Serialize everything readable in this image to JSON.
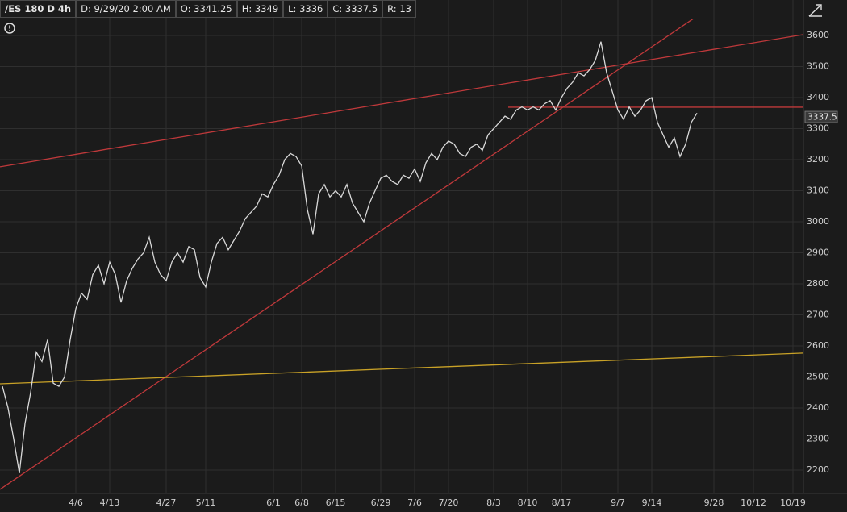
{
  "chart_data": {
    "type": "line",
    "header": [
      "/ES 180 D 4h",
      "D: 9/29/20 2:00 AM",
      "O: 3341.25",
      "H: 3349",
      "L: 3336",
      "C: 3337.5",
      "R: 13"
    ],
    "categories": [
      null,
      null,
      null,
      null,
      null,
      null,
      null,
      null,
      null,
      null,
      null,
      null,
      null,
      "4/6",
      null,
      null,
      null,
      null,
      null,
      "4/13",
      null,
      null,
      null,
      null,
      null,
      null,
      null,
      null,
      null,
      "4/27",
      null,
      null,
      null,
      null,
      null,
      null,
      "5/11",
      null,
      null,
      null,
      null,
      null,
      null,
      null,
      null,
      null,
      null,
      null,
      "6/1",
      null,
      null,
      null,
      null,
      "6/8",
      null,
      null,
      null,
      null,
      null,
      "6/15",
      null,
      null,
      null,
      null,
      null,
      null,
      null,
      "6/29",
      null,
      null,
      null,
      null,
      null,
      "7/6",
      null,
      null,
      null,
      null,
      null,
      "7/20",
      null,
      null,
      null,
      null,
      null,
      null,
      null,
      "8/3",
      null,
      null,
      null,
      null,
      null,
      "8/10",
      null,
      null,
      null,
      null,
      null,
      "8/17",
      null,
      null,
      null,
      null,
      null,
      null,
      null,
      null,
      null,
      "9/7",
      null,
      null,
      null,
      null,
      null,
      "9/14",
      null,
      null,
      null,
      null,
      null,
      null,
      null,
      null,
      null,
      null,
      "9/28",
      null,
      null,
      null,
      null,
      null,
      null,
      "10/12",
      null,
      null,
      null,
      null,
      null,
      null,
      "10/19",
      null
    ],
    "series": [
      {
        "color": "#d9d9d9",
        "values": [
          2470,
          2400,
          2300,
          2190,
          2350,
          2450,
          2580,
          2550,
          2620,
          2480,
          2470,
          2500,
          2620,
          2720,
          2770,
          2750,
          2830,
          2860,
          2800,
          2870,
          2830,
          2740,
          2810,
          2850,
          2880,
          2900,
          2950,
          2870,
          2830,
          2810,
          2870,
          2900,
          2870,
          2920,
          2910,
          2820,
          2790,
          2870,
          2930,
          2950,
          2910,
          2940,
          2970,
          3010,
          3030,
          3050,
          3090,
          3080,
          3120,
          3150,
          3200,
          3220,
          3210,
          3180,
          3040,
          2960,
          3090,
          3120,
          3080,
          3100,
          3080,
          3120,
          3060,
          3030,
          3000,
          3060,
          3100,
          3140,
          3150,
          3130,
          3120,
          3150,
          3140,
          3170,
          3130,
          3190,
          3220,
          3200,
          3240,
          3260,
          3250,
          3220,
          3210,
          3240,
          3250,
          3230,
          3280,
          3300,
          3320,
          3340,
          3330,
          3360,
          3370,
          3360,
          3370,
          3360,
          3380,
          3390,
          3360,
          3400,
          3430,
          3450,
          3480,
          3470,
          3490,
          3520,
          3580,
          3480,
          3420,
          3360,
          3330,
          3370,
          3340,
          3360,
          3390,
          3400,
          3320,
          3280,
          3240,
          3270,
          3210,
          3250,
          3320,
          3350,
          null,
          null,
          null,
          null,
          null,
          null,
          null,
          null,
          null,
          null,
          null,
          null,
          null,
          null,
          null,
          null,
          null,
          null
        ]
      }
    ],
    "trendlines": [
      {
        "color": "#c0393b",
        "values": [
          3177,
          3603
        ]
      },
      {
        "color": "#c0393b",
        "values": [
          2138,
          3895
        ]
      },
      {
        "color": "#c0393b",
        "values": [
          3369,
          3369
        ]
      },
      {
        "color": "#c9a227",
        "values": [
          2478,
          2577
        ]
      }
    ],
    "last_price": 3337.5,
    "ylim": [
      2130,
      3652
    ],
    "yticks": [
      2200,
      2300,
      2400,
      2500,
      2600,
      2700,
      2800,
      2900,
      3000,
      3100,
      3200,
      3300,
      3400,
      3500,
      3600
    ],
    "grid": true
  }
}
